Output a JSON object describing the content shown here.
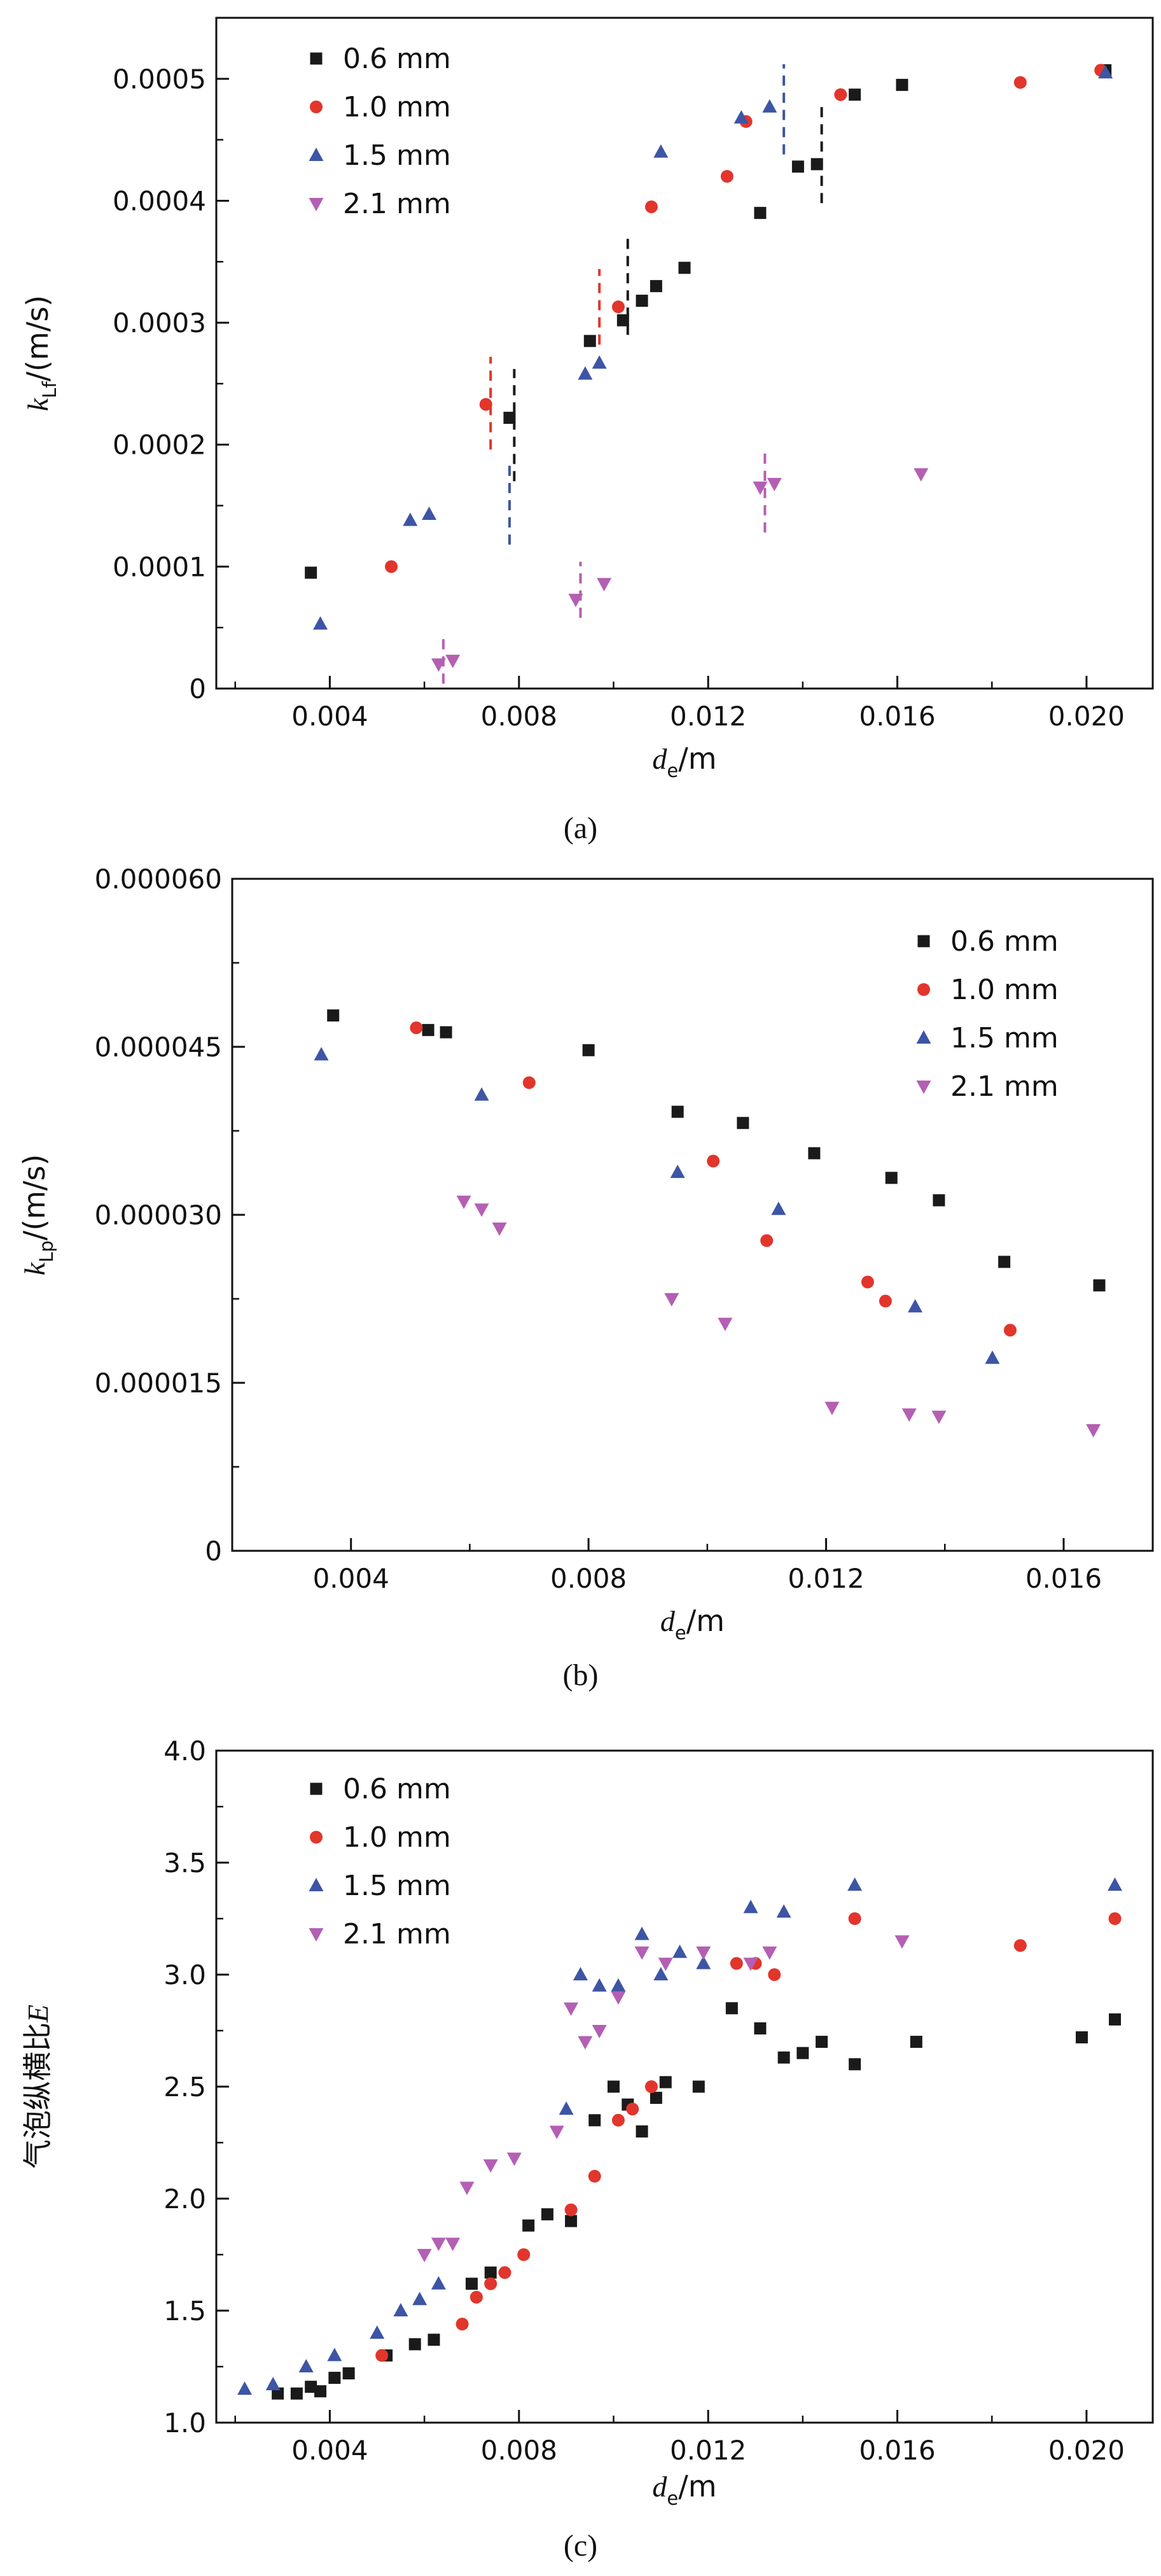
{
  "page": {
    "background": "#ffffff"
  },
  "colors": {
    "black": "#1a1a1a",
    "red": "#e2352c",
    "blue": "#3d55a5",
    "purple": "#b45fb3"
  },
  "legend_labels": [
    "0.6 mm",
    "1.0 mm",
    "1.5 mm",
    "2.1 mm"
  ],
  "chart_data": [
    {
      "type": "scatter",
      "caption": "(a)",
      "xlabel_parts": [
        {
          "t": "d",
          "s": "i"
        },
        {
          "t": "e",
          "s": "sub"
        },
        {
          "t": "/m",
          "s": "n"
        }
      ],
      "ylabel_parts": [
        {
          "t": "k",
          "s": "i"
        },
        {
          "t": "Lf",
          "s": "sub"
        },
        {
          "t": "/(m/s)",
          "s": "n"
        }
      ],
      "xlim": [
        0.0016,
        0.0214
      ],
      "ylim": [
        0,
        0.00055
      ],
      "xticks": {
        "values": [
          0.004,
          0.008,
          0.012,
          0.016,
          0.02
        ],
        "labels": [
          "0.004",
          "0.008",
          "0.012",
          "0.016",
          "0.020"
        ],
        "minor": [
          0.002,
          0.006,
          0.01,
          0.014,
          0.018
        ]
      },
      "yticks": {
        "values": [
          0,
          0.0001,
          0.0002,
          0.0003,
          0.0004,
          0.0005
        ],
        "labels": [
          "0",
          "0.0001",
          "0.0002",
          "0.0003",
          "0.0004",
          "0.0005"
        ],
        "minor": [
          5e-05,
          0.00015,
          0.00025,
          0.00035,
          0.00045
        ]
      },
      "legend_pos": "top-left",
      "series": [
        {
          "name": "0.6 mm",
          "marker": "square",
          "color": "black",
          "points": [
            [
              0.0036,
              9.5e-05
            ],
            [
              0.0078,
              0.000222
            ],
            [
              0.0095,
              0.000285
            ],
            [
              0.0102,
              0.000302
            ],
            [
              0.0106,
              0.000318
            ],
            [
              0.0109,
              0.00033
            ],
            [
              0.0115,
              0.000345
            ],
            [
              0.0131,
              0.00039
            ],
            [
              0.0139,
              0.000428
            ],
            [
              0.0143,
              0.00043
            ],
            [
              0.0151,
              0.000487
            ],
            [
              0.0161,
              0.000495
            ],
            [
              0.0204,
              0.000507
            ]
          ]
        },
        {
          "name": "1.0 mm",
          "marker": "circle",
          "color": "red",
          "points": [
            [
              0.0053,
              0.0001
            ],
            [
              0.0073,
              0.000233
            ],
            [
              0.0101,
              0.000313
            ],
            [
              0.0108,
              0.000395
            ],
            [
              0.0124,
              0.00042
            ],
            [
              0.0128,
              0.000465
            ],
            [
              0.0148,
              0.000487
            ],
            [
              0.0186,
              0.000497
            ],
            [
              0.0203,
              0.000507
            ]
          ]
        },
        {
          "name": "1.5 mm",
          "marker": "triangle-up",
          "color": "blue",
          "points": [
            [
              0.0038,
              5.3e-05
            ],
            [
              0.0057,
              0.000138
            ],
            [
              0.0061,
              0.000143
            ],
            [
              0.0094,
              0.000258
            ],
            [
              0.0097,
              0.000267
            ],
            [
              0.011,
              0.00044
            ],
            [
              0.0127,
              0.000468
            ],
            [
              0.0133,
              0.000477
            ],
            [
              0.0204,
              0.000505
            ]
          ]
        },
        {
          "name": "2.1 mm",
          "marker": "triangle-down",
          "color": "purple",
          "points": [
            [
              0.0063,
              2e-05
            ],
            [
              0.0066,
              2.3e-05
            ],
            [
              0.0092,
              7.3e-05
            ],
            [
              0.0098,
              8.6e-05
            ],
            [
              0.0131,
              0.000165
            ],
            [
              0.0134,
              0.000168
            ],
            [
              0.0165,
              0.000176
            ]
          ]
        }
      ],
      "error_bars": [
        {
          "x": 0.0079,
          "y1": 0.00017,
          "y2": 0.000262,
          "color": "black"
        },
        {
          "x": 0.0103,
          "y1": 0.00029,
          "y2": 0.000372,
          "color": "black"
        },
        {
          "x": 0.0144,
          "y1": 0.000398,
          "y2": 0.000478,
          "color": "black"
        },
        {
          "x": 0.0074,
          "y1": 0.000196,
          "y2": 0.000272,
          "color": "red"
        },
        {
          "x": 0.0097,
          "y1": 0.000282,
          "y2": 0.000344,
          "color": "red"
        },
        {
          "x": 0.0078,
          "y1": 0.000118,
          "y2": 0.000188,
          "color": "blue"
        },
        {
          "x": 0.0136,
          "y1": 0.000438,
          "y2": 0.000512,
          "color": "blue"
        },
        {
          "x": 0.0064,
          "y1": 4e-06,
          "y2": 4.2e-05,
          "color": "purple"
        },
        {
          "x": 0.0093,
          "y1": 5.8e-05,
          "y2": 0.000104,
          "color": "purple"
        },
        {
          "x": 0.0132,
          "y1": 0.000128,
          "y2": 0.000198,
          "color": "purple"
        }
      ]
    },
    {
      "type": "scatter",
      "caption": "(b)",
      "xlabel_parts": [
        {
          "t": "d",
          "s": "i"
        },
        {
          "t": "e",
          "s": "sub"
        },
        {
          "t": "/m",
          "s": "n"
        }
      ],
      "ylabel_parts": [
        {
          "t": "k",
          "s": "i"
        },
        {
          "t": "Lp",
          "s": "sub"
        },
        {
          "t": "/(m/s)",
          "s": "n"
        }
      ],
      "xlim": [
        0.002,
        0.0175
      ],
      "ylim": [
        0,
        6e-05
      ],
      "xticks": {
        "values": [
          0.004,
          0.008,
          0.012,
          0.016
        ],
        "labels": [
          "0.004",
          "0.008",
          "0.012",
          "0.016"
        ],
        "minor": [
          0.006,
          0.01,
          0.014
        ]
      },
      "yticks": {
        "values": [
          0,
          1.5e-05,
          3e-05,
          4.5e-05,
          6e-05
        ],
        "labels": [
          "0",
          "0.000015",
          "0.000030",
          "0.000045",
          "0.000060"
        ],
        "minor": [
          7.5e-06,
          2.25e-05,
          3.75e-05,
          5.25e-05
        ]
      },
      "legend_pos": "top-right",
      "series": [
        {
          "name": "0.6 mm",
          "marker": "square",
          "color": "black",
          "points": [
            [
              0.0037,
              4.78e-05
            ],
            [
              0.0053,
              4.65e-05
            ],
            [
              0.0056,
              4.63e-05
            ],
            [
              0.008,
              4.47e-05
            ],
            [
              0.0095,
              3.92e-05
            ],
            [
              0.0106,
              3.82e-05
            ],
            [
              0.0118,
              3.55e-05
            ],
            [
              0.0131,
              3.33e-05
            ],
            [
              0.0139,
              3.13e-05
            ],
            [
              0.015,
              2.58e-05
            ],
            [
              0.0166,
              2.37e-05
            ]
          ]
        },
        {
          "name": "1.0 mm",
          "marker": "circle",
          "color": "red",
          "points": [
            [
              0.0051,
              4.67e-05
            ],
            [
              0.007,
              4.18e-05
            ],
            [
              0.0101,
              3.48e-05
            ],
            [
              0.011,
              2.77e-05
            ],
            [
              0.0127,
              2.4e-05
            ],
            [
              0.013,
              2.23e-05
            ],
            [
              0.0151,
              1.97e-05
            ]
          ]
        },
        {
          "name": "1.5 mm",
          "marker": "triangle-up",
          "color": "blue",
          "points": [
            [
              0.0035,
              4.43e-05
            ],
            [
              0.0062,
              4.07e-05
            ],
            [
              0.0095,
              3.38e-05
            ],
            [
              0.0112,
              3.05e-05
            ],
            [
              0.0135,
              2.18e-05
            ],
            [
              0.0148,
              1.72e-05
            ]
          ]
        },
        {
          "name": "2.1 mm",
          "marker": "triangle-down",
          "color": "purple",
          "points": [
            [
              0.0059,
              3.12e-05
            ],
            [
              0.0062,
              3.05e-05
            ],
            [
              0.0065,
              2.88e-05
            ],
            [
              0.0094,
              2.25e-05
            ],
            [
              0.0103,
              2.03e-05
            ],
            [
              0.0121,
              1.28e-05
            ],
            [
              0.0134,
              1.22e-05
            ],
            [
              0.0139,
              1.2e-05
            ],
            [
              0.0165,
              1.08e-05
            ]
          ]
        }
      ],
      "error_bars": []
    },
    {
      "type": "scatter",
      "caption": "(c)",
      "xlabel_parts": [
        {
          "t": "d",
          "s": "i"
        },
        {
          "t": "e",
          "s": "sub"
        },
        {
          "t": "/m",
          "s": "n"
        }
      ],
      "ylabel_parts": [
        {
          "t": "气泡纵横比",
          "s": "n"
        },
        {
          "t": "E",
          "s": "i"
        }
      ],
      "xlim": [
        0.0016,
        0.0214
      ],
      "ylim": [
        1.0,
        4.0
      ],
      "xticks": {
        "values": [
          0.004,
          0.008,
          0.012,
          0.016,
          0.02
        ],
        "labels": [
          "0.004",
          "0.008",
          "0.012",
          "0.016",
          "0.020"
        ],
        "minor": [
          0.002,
          0.006,
          0.01,
          0.014,
          0.018
        ]
      },
      "yticks": {
        "values": [
          1.0,
          1.5,
          2.0,
          2.5,
          3.0,
          3.5,
          4.0
        ],
        "labels": [
          "1.0",
          "1.5",
          "2.0",
          "2.5",
          "3.0",
          "3.5",
          "4.0"
        ],
        "minor": [
          1.25,
          1.75,
          2.25,
          2.75,
          3.25,
          3.75
        ]
      },
      "legend_pos": "top-left",
      "series": [
        {
          "name": "0.6 mm",
          "marker": "square",
          "color": "black",
          "points": [
            [
              0.0029,
              1.13
            ],
            [
              0.0033,
              1.13
            ],
            [
              0.0036,
              1.16
            ],
            [
              0.0038,
              1.14
            ],
            [
              0.0041,
              1.2
            ],
            [
              0.0044,
              1.22
            ],
            [
              0.0052,
              1.3
            ],
            [
              0.0058,
              1.35
            ],
            [
              0.0062,
              1.37
            ],
            [
              0.007,
              1.62
            ],
            [
              0.0074,
              1.67
            ],
            [
              0.0082,
              1.88
            ],
            [
              0.0086,
              1.93
            ],
            [
              0.0091,
              1.9
            ],
            [
              0.0096,
              2.35
            ],
            [
              0.01,
              2.5
            ],
            [
              0.0103,
              2.42
            ],
            [
              0.0106,
              2.3
            ],
            [
              0.0109,
              2.45
            ],
            [
              0.0111,
              2.52
            ],
            [
              0.0118,
              2.5
            ],
            [
              0.0125,
              2.85
            ],
            [
              0.0131,
              2.76
            ],
            [
              0.0136,
              2.63
            ],
            [
              0.014,
              2.65
            ],
            [
              0.0144,
              2.7
            ],
            [
              0.0151,
              2.6
            ],
            [
              0.0164,
              2.7
            ],
            [
              0.0199,
              2.72
            ],
            [
              0.0206,
              2.8
            ]
          ]
        },
        {
          "name": "1.0 mm",
          "marker": "circle",
          "color": "red",
          "points": [
            [
              0.0051,
              1.3
            ],
            [
              0.0068,
              1.44
            ],
            [
              0.0071,
              1.56
            ],
            [
              0.0074,
              1.62
            ],
            [
              0.0077,
              1.67
            ],
            [
              0.0081,
              1.75
            ],
            [
              0.0091,
              1.95
            ],
            [
              0.0096,
              2.1
            ],
            [
              0.0101,
              2.35
            ],
            [
              0.0104,
              2.4
            ],
            [
              0.0108,
              2.5
            ],
            [
              0.0126,
              3.05
            ],
            [
              0.013,
              3.05
            ],
            [
              0.0134,
              3.0
            ],
            [
              0.0151,
              3.25
            ],
            [
              0.0186,
              3.13
            ],
            [
              0.0206,
              3.25
            ]
          ]
        },
        {
          "name": "1.5 mm",
          "marker": "triangle-up",
          "color": "blue",
          "points": [
            [
              0.0022,
              1.15
            ],
            [
              0.0028,
              1.17
            ],
            [
              0.0035,
              1.25
            ],
            [
              0.0041,
              1.3
            ],
            [
              0.005,
              1.4
            ],
            [
              0.0055,
              1.5
            ],
            [
              0.0059,
              1.55
            ],
            [
              0.0063,
              1.62
            ],
            [
              0.009,
              2.4
            ],
            [
              0.0093,
              3.0
            ],
            [
              0.0097,
              2.95
            ],
            [
              0.0101,
              2.95
            ],
            [
              0.0106,
              3.18
            ],
            [
              0.011,
              3.0
            ],
            [
              0.0114,
              3.1
            ],
            [
              0.0119,
              3.05
            ],
            [
              0.0129,
              3.3
            ],
            [
              0.0136,
              3.28
            ],
            [
              0.0151,
              3.4
            ],
            [
              0.0206,
              3.4
            ]
          ]
        },
        {
          "name": "2.1 mm",
          "marker": "triangle-down",
          "color": "purple",
          "points": [
            [
              0.006,
              1.75
            ],
            [
              0.0063,
              1.8
            ],
            [
              0.0066,
              1.8
            ],
            [
              0.0069,
              2.05
            ],
            [
              0.0074,
              2.15
            ],
            [
              0.0079,
              2.18
            ],
            [
              0.0088,
              2.3
            ],
            [
              0.0091,
              2.85
            ],
            [
              0.0094,
              2.7
            ],
            [
              0.0097,
              2.75
            ],
            [
              0.0101,
              2.9
            ],
            [
              0.0106,
              3.1
            ],
            [
              0.0111,
              3.05
            ],
            [
              0.0119,
              3.1
            ],
            [
              0.0129,
              3.05
            ],
            [
              0.0133,
              3.1
            ],
            [
              0.0161,
              3.15
            ]
          ]
        }
      ],
      "error_bars": []
    }
  ]
}
